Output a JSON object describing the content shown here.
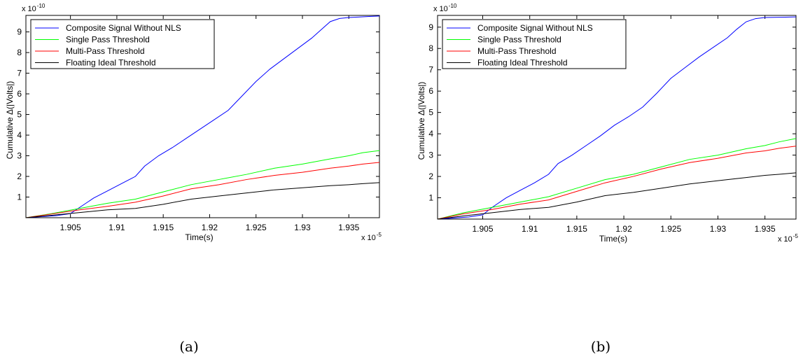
{
  "chart_data": [
    {
      "type": "line",
      "caption": "(a)",
      "xlabel": "Time(s)",
      "ylabel": "Cumulative Δ(|Volts|)",
      "x_multiplier": "x 10",
      "x_exponent": "-5",
      "y_multiplier": "x 10",
      "y_exponent": "-10",
      "xlim": [
        1.9002,
        1.9383
      ],
      "ylim": [
        0,
        9.8
      ],
      "xticks": [
        1.905,
        1.91,
        1.915,
        1.92,
        1.925,
        1.93,
        1.935
      ],
      "xtick_labels": [
        "1.905",
        "1.91",
        "1.915",
        "1.92",
        "1.925",
        "1.93",
        "1.935"
      ],
      "yticks": [
        1,
        2,
        3,
        4,
        5,
        6,
        7,
        8,
        9
      ],
      "ytick_labels": [
        "1",
        "2",
        "3",
        "4",
        "5",
        "6",
        "7",
        "8",
        "9"
      ],
      "grid": false,
      "legend_position": "top-left",
      "series": [
        {
          "name": "Composite Signal Without NLS",
          "color": "#0000ff",
          "x": [
            1.9002,
            1.9035,
            1.905,
            1.906,
            1.9075,
            1.909,
            1.9105,
            1.912,
            1.913,
            1.9145,
            1.916,
            1.9175,
            1.919,
            1.9205,
            1.922,
            1.9235,
            1.925,
            1.9265,
            1.928,
            1.9295,
            1.931,
            1.932,
            1.933,
            1.934,
            1.935,
            1.936,
            1.9372,
            1.9383
          ],
          "y": [
            0,
            0.1,
            0.2,
            0.5,
            0.95,
            1.3,
            1.65,
            2.0,
            2.5,
            3.0,
            3.4,
            3.85,
            4.3,
            4.75,
            5.2,
            5.9,
            6.6,
            7.2,
            7.7,
            8.2,
            8.7,
            9.1,
            9.5,
            9.65,
            9.7,
            9.72,
            9.75,
            9.77
          ]
        },
        {
          "name": "Single Pass Threshold",
          "color": "#00ff00",
          "x": [
            1.9002,
            1.903,
            1.906,
            1.909,
            1.912,
            1.915,
            1.918,
            1.921,
            1.924,
            1.927,
            1.93,
            1.933,
            1.935,
            1.9365,
            1.9383
          ],
          "y": [
            0,
            0.2,
            0.45,
            0.7,
            0.9,
            1.25,
            1.6,
            1.85,
            2.1,
            2.4,
            2.6,
            2.85,
            3.0,
            3.15,
            3.25
          ]
        },
        {
          "name": "Multi-Pass Threshold",
          "color": "#ff0000",
          "x": [
            1.9002,
            1.903,
            1.906,
            1.909,
            1.912,
            1.915,
            1.918,
            1.921,
            1.924,
            1.927,
            1.93,
            1.933,
            1.935,
            1.9365,
            1.9383
          ],
          "y": [
            0,
            0.18,
            0.38,
            0.55,
            0.75,
            1.05,
            1.4,
            1.6,
            1.85,
            2.05,
            2.2,
            2.4,
            2.5,
            2.6,
            2.68
          ]
        },
        {
          "name": "Floating Ideal Threshold",
          "color": "#000000",
          "x": [
            1.9002,
            1.903,
            1.906,
            1.909,
            1.912,
            1.915,
            1.918,
            1.921,
            1.924,
            1.927,
            1.93,
            1.933,
            1.935,
            1.9365,
            1.9383
          ],
          "y": [
            0,
            0.12,
            0.25,
            0.38,
            0.45,
            0.65,
            0.9,
            1.05,
            1.2,
            1.35,
            1.45,
            1.55,
            1.6,
            1.65,
            1.7
          ]
        }
      ]
    },
    {
      "type": "line",
      "caption": "(b)",
      "xlabel": "Time(s)",
      "ylabel": "Cumulative Δ(|Volts|)",
      "x_multiplier": "x 10",
      "x_exponent": "-5",
      "y_multiplier": "x 10",
      "y_exponent": "-10",
      "xlim": [
        1.9002,
        1.9383
      ],
      "ylim": [
        0,
        9.55
      ],
      "xticks": [
        1.905,
        1.91,
        1.915,
        1.92,
        1.925,
        1.93,
        1.935
      ],
      "xtick_labels": [
        "1.905",
        "1.91",
        "1.915",
        "1.92",
        "1.925",
        "1.93",
        "1.935"
      ],
      "yticks": [
        1,
        2,
        3,
        4,
        5,
        6,
        7,
        8,
        9
      ],
      "ytick_labels": [
        "1",
        "2",
        "3",
        "4",
        "5",
        "6",
        "7",
        "8",
        "9"
      ],
      "grid": false,
      "legend_position": "top-left",
      "series": [
        {
          "name": "Composite Signal Without NLS",
          "color": "#0000ff",
          "x": [
            1.9002,
            1.9035,
            1.905,
            1.906,
            1.9075,
            1.909,
            1.9105,
            1.912,
            1.913,
            1.9145,
            1.916,
            1.9175,
            1.919,
            1.9205,
            1.922,
            1.9235,
            1.925,
            1.9265,
            1.928,
            1.9295,
            1.931,
            1.932,
            1.933,
            1.934,
            1.935,
            1.936,
            1.9372,
            1.9383
          ],
          "y": [
            0,
            0.1,
            0.2,
            0.55,
            1.0,
            1.35,
            1.7,
            2.1,
            2.6,
            3.0,
            3.45,
            3.9,
            4.4,
            4.8,
            5.25,
            5.9,
            6.6,
            7.1,
            7.6,
            8.05,
            8.5,
            8.9,
            9.25,
            9.4,
            9.45,
            9.46,
            9.47,
            9.48
          ]
        },
        {
          "name": "Single Pass Threshold",
          "color": "#00ff00",
          "x": [
            1.9002,
            1.903,
            1.906,
            1.909,
            1.912,
            1.915,
            1.918,
            1.921,
            1.924,
            1.927,
            1.93,
            1.933,
            1.935,
            1.9365,
            1.9383
          ],
          "y": [
            0,
            0.3,
            0.55,
            0.8,
            1.05,
            1.45,
            1.85,
            2.1,
            2.45,
            2.8,
            3.0,
            3.3,
            3.45,
            3.62,
            3.78
          ]
        },
        {
          "name": "Multi-Pass Threshold",
          "color": "#ff0000",
          "x": [
            1.9002,
            1.903,
            1.906,
            1.909,
            1.912,
            1.915,
            1.918,
            1.921,
            1.924,
            1.927,
            1.93,
            1.933,
            1.935,
            1.9365,
            1.9383
          ],
          "y": [
            0,
            0.25,
            0.45,
            0.7,
            0.9,
            1.3,
            1.7,
            2.0,
            2.35,
            2.65,
            2.85,
            3.1,
            3.2,
            3.32,
            3.42
          ]
        },
        {
          "name": "Floating Ideal Threshold",
          "color": "#000000",
          "x": [
            1.9002,
            1.903,
            1.906,
            1.909,
            1.912,
            1.915,
            1.918,
            1.921,
            1.924,
            1.927,
            1.93,
            1.933,
            1.935,
            1.9365,
            1.9383
          ],
          "y": [
            0,
            0.15,
            0.3,
            0.45,
            0.55,
            0.8,
            1.1,
            1.25,
            1.45,
            1.65,
            1.8,
            1.95,
            2.05,
            2.1,
            2.17
          ]
        }
      ]
    }
  ]
}
